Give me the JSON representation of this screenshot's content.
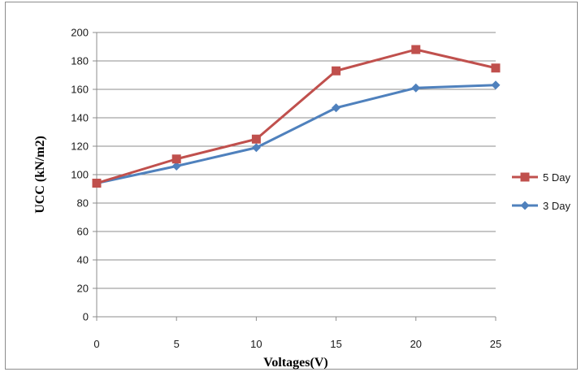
{
  "chart_data": {
    "type": "line",
    "xlabel": "Voltages(V)",
    "ylabel": "UCC (kN/m2)",
    "x": [
      0,
      5,
      10,
      15,
      20,
      25
    ],
    "xlim": [
      0,
      25
    ],
    "ylim": [
      0,
      200
    ],
    "yticks": [
      0,
      20,
      40,
      60,
      80,
      100,
      120,
      140,
      160,
      180,
      200
    ],
    "grid": "horizontal",
    "legend_position": "right",
    "series": [
      {
        "name": "5 Day",
        "color": "#c0504d",
        "marker": "square",
        "values": [
          94,
          111,
          125,
          173,
          188,
          175
        ]
      },
      {
        "name": "3 Day",
        "color": "#4f81bd",
        "marker": "diamond",
        "values": [
          94,
          106,
          119,
          147,
          161,
          163
        ]
      }
    ]
  }
}
